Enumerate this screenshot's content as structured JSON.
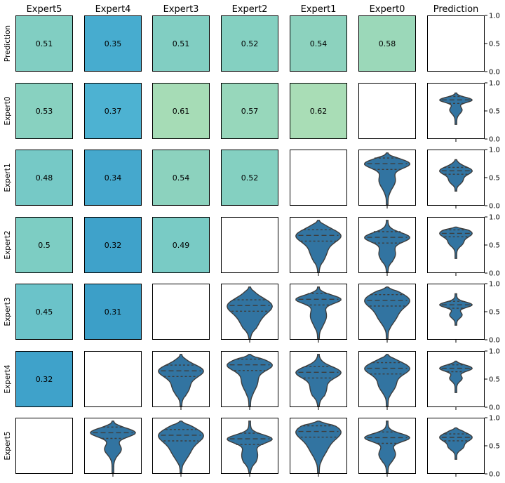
{
  "chart_data": {
    "type": "heatmap",
    "title": "",
    "columns": [
      "Expert5",
      "Expert4",
      "Expert3",
      "Expert2",
      "Expert1",
      "Expert0",
      "Prediction"
    ],
    "rows": [
      "Prediction",
      "Expert0",
      "Expert1",
      "Expert2",
      "Expert3",
      "Expert4",
      "Expert5"
    ],
    "pairwise_values": [
      [
        0.51,
        0.35,
        0.51,
        0.52,
        0.54,
        0.58,
        null
      ],
      [
        0.53,
        0.37,
        0.61,
        0.57,
        0.62,
        null,
        null
      ],
      [
        0.48,
        0.34,
        0.54,
        0.52,
        null,
        null,
        null
      ],
      [
        0.5,
        0.32,
        0.49,
        null,
        null,
        null,
        null
      ],
      [
        0.45,
        0.31,
        null,
        null,
        null,
        null,
        null
      ],
      [
        0.32,
        null,
        null,
        null,
        null,
        null,
        null
      ],
      [
        null,
        null,
        null,
        null,
        null,
        null,
        null
      ]
    ],
    "value_labels": [
      [
        "0.51",
        "0.35",
        "0.51",
        "0.52",
        "0.54",
        "0.58",
        ""
      ],
      [
        "0.53",
        "0.37",
        "0.61",
        "0.57",
        "0.62",
        "",
        ""
      ],
      [
        "0.48",
        "0.34",
        "0.54",
        "0.52",
        "",
        "",
        ""
      ],
      [
        "0.5",
        "0.32",
        "0.49",
        "",
        "",
        "",
        ""
      ],
      [
        "0.45",
        "0.31",
        "",
        "",
        "",
        "",
        ""
      ],
      [
        "0.32",
        "",
        "",
        "",
        "",
        "",
        ""
      ],
      [
        "",
        "",
        "",
        "",
        "",
        "",
        ""
      ]
    ],
    "colormap": "GnBu",
    "color_range": [
      0.3,
      0.65
    ],
    "violin_cells": [
      [
        1,
        6
      ],
      [
        2,
        5
      ],
      [
        2,
        6
      ],
      [
        3,
        4
      ],
      [
        3,
        5
      ],
      [
        3,
        6
      ],
      [
        4,
        3
      ],
      [
        4,
        4
      ],
      [
        4,
        5
      ],
      [
        4,
        6
      ],
      [
        5,
        2
      ],
      [
        5,
        3
      ],
      [
        5,
        4
      ],
      [
        5,
        5
      ],
      [
        5,
        6
      ],
      [
        6,
        1
      ],
      [
        6,
        2
      ],
      [
        6,
        3
      ],
      [
        6,
        4
      ],
      [
        6,
        5
      ],
      [
        6,
        6
      ]
    ],
    "violin_color": "#3274a1",
    "right_axis": {
      "ylim": [
        0.0,
        1.0
      ],
      "ticks": [
        "0.0",
        "0.5",
        "1.0"
      ]
    },
    "grid": false
  }
}
